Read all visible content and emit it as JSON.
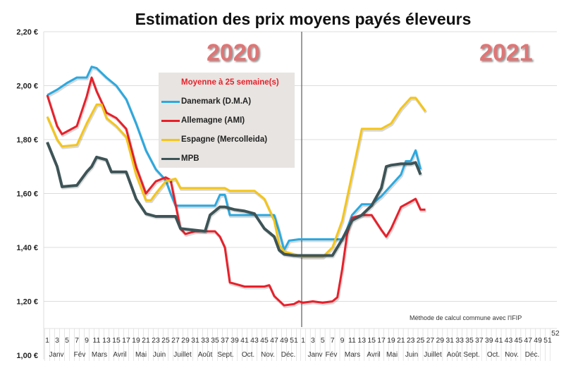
{
  "chart_data": {
    "type": "line",
    "title": "Estimation des prix moyens payés éleveurs",
    "year_labels": [
      "2020",
      "2021"
    ],
    "ylim": [
      1.0,
      2.2
    ],
    "y_ticks": [
      "1,00 €",
      "1,20 €",
      "1,40 €",
      "1,60 €",
      "1,80 €",
      "2,00 €",
      "2,20 €"
    ],
    "y_tick_values": [
      1.0,
      1.2,
      1.4,
      1.6,
      1.8,
      2.0,
      2.2
    ],
    "grid": "horizontal",
    "legend_title": "Moyenne à  25 semaine(s)",
    "legend_placement": "top-left inside",
    "week_ticks_2020": [
      "1",
      "3",
      "5",
      "7",
      "9",
      "11",
      "13",
      "15",
      "17",
      "19",
      "21",
      "23",
      "25",
      "27",
      "29",
      "31",
      "33",
      "35",
      "37",
      "39",
      "41",
      "43",
      "45",
      "47",
      "49",
      "51"
    ],
    "week_ticks_2021": [
      "1",
      "3",
      "5",
      "7",
      "9",
      "11",
      "13",
      "15",
      "17",
      "19",
      "21",
      "23",
      "25",
      "27",
      "29",
      "31",
      "33",
      "35",
      "37",
      "39",
      "41",
      "43",
      "45",
      "47",
      "49",
      "51",
      "52"
    ],
    "months_2020": [
      "Janv",
      "Fév",
      "Mars",
      "Avril",
      "Mai",
      "Juin",
      "Juillet",
      "Août",
      "Sept.",
      "Oct.",
      "Nov.",
      "Déc."
    ],
    "months_2021": [
      "Janv",
      "Fév",
      "Mars",
      "Avril",
      "Mai",
      "Juin",
      "Juillet",
      "Août",
      "Sept.",
      "Oct.",
      "Nov.",
      "Déc."
    ],
    "note": "Méthode de calcul commune avec l'IFIP",
    "series": [
      {
        "name": "Danemark (D.M.A)",
        "color": "#2aa9e0",
        "y2020": [
          [
            1,
            1.965
          ],
          [
            3,
            1.985
          ],
          [
            5,
            2.01
          ],
          [
            7,
            2.03
          ],
          [
            9,
            2.03
          ],
          [
            10,
            2.07
          ],
          [
            11,
            2.065
          ],
          [
            13,
            2.03
          ],
          [
            15,
            2.0
          ],
          [
            17,
            1.95
          ],
          [
            19,
            1.86
          ],
          [
            21,
            1.76
          ],
          [
            23,
            1.69
          ],
          [
            25,
            1.65
          ],
          [
            26,
            1.6
          ],
          [
            27,
            1.555
          ],
          [
            35,
            1.555
          ],
          [
            36,
            1.595
          ],
          [
            37,
            1.595
          ],
          [
            38,
            1.52
          ],
          [
            47,
            1.52
          ],
          [
            48,
            1.46
          ],
          [
            49,
            1.39
          ],
          [
            50,
            1.425
          ],
          [
            52,
            1.43
          ]
        ],
        "y2021": [
          [
            1,
            1.43
          ],
          [
            9,
            1.43
          ],
          [
            10,
            1.47
          ],
          [
            11,
            1.52
          ],
          [
            13,
            1.56
          ],
          [
            15,
            1.56
          ],
          [
            17,
            1.59
          ],
          [
            19,
            1.63
          ],
          [
            21,
            1.67
          ],
          [
            22,
            1.72
          ],
          [
            23,
            1.72
          ],
          [
            24,
            1.76
          ],
          [
            25,
            1.69
          ]
        ]
      },
      {
        "name": "Allemagne (AMI)",
        "color": "#e8202a",
        "y2020": [
          [
            1,
            1.965
          ],
          [
            3,
            1.85
          ],
          [
            4,
            1.82
          ],
          [
            5,
            1.83
          ],
          [
            7,
            1.85
          ],
          [
            9,
            1.96
          ],
          [
            10,
            2.03
          ],
          [
            11,
            1.98
          ],
          [
            13,
            1.9
          ],
          [
            15,
            1.88
          ],
          [
            17,
            1.84
          ],
          [
            19,
            1.7
          ],
          [
            21,
            1.6
          ],
          [
            23,
            1.645
          ],
          [
            25,
            1.66
          ],
          [
            26,
            1.65
          ],
          [
            27,
            1.56
          ],
          [
            28,
            1.47
          ],
          [
            29,
            1.45
          ],
          [
            31,
            1.46
          ],
          [
            35,
            1.46
          ],
          [
            36,
            1.44
          ],
          [
            37,
            1.4
          ],
          [
            38,
            1.27
          ],
          [
            39,
            1.265
          ],
          [
            41,
            1.255
          ],
          [
            45,
            1.255
          ],
          [
            46,
            1.26
          ],
          [
            47,
            1.22
          ],
          [
            49,
            1.185
          ],
          [
            51,
            1.19
          ],
          [
            52,
            1.2
          ]
        ],
        "y2021": [
          [
            1,
            1.195
          ],
          [
            3,
            1.2
          ],
          [
            5,
            1.195
          ],
          [
            7,
            1.2
          ],
          [
            8,
            1.215
          ],
          [
            9,
            1.32
          ],
          [
            10,
            1.45
          ],
          [
            11,
            1.51
          ],
          [
            13,
            1.52
          ],
          [
            15,
            1.52
          ],
          [
            17,
            1.465
          ],
          [
            18,
            1.44
          ],
          [
            19,
            1.47
          ],
          [
            21,
            1.55
          ],
          [
            23,
            1.57
          ],
          [
            24,
            1.58
          ],
          [
            25,
            1.54
          ],
          [
            26,
            1.54
          ]
        ]
      },
      {
        "name": "Espagne (Mercolleida)",
        "color": "#f5c518",
        "y2020": [
          [
            1,
            1.885
          ],
          [
            3,
            1.8
          ],
          [
            4,
            1.775
          ],
          [
            7,
            1.78
          ],
          [
            9,
            1.86
          ],
          [
            11,
            1.93
          ],
          [
            12,
            1.93
          ],
          [
            13,
            1.88
          ],
          [
            15,
            1.85
          ],
          [
            17,
            1.81
          ],
          [
            19,
            1.67
          ],
          [
            21,
            1.575
          ],
          [
            22,
            1.575
          ],
          [
            23,
            1.6
          ],
          [
            25,
            1.645
          ],
          [
            27,
            1.655
          ],
          [
            28,
            1.62
          ],
          [
            37,
            1.62
          ],
          [
            38,
            1.61
          ],
          [
            43,
            1.61
          ],
          [
            45,
            1.58
          ],
          [
            47,
            1.5
          ],
          [
            48,
            1.41
          ],
          [
            49,
            1.385
          ],
          [
            51,
            1.375
          ],
          [
            52,
            1.37
          ]
        ],
        "y2021": [
          [
            1,
            1.365
          ],
          [
            5,
            1.365
          ],
          [
            7,
            1.4
          ],
          [
            9,
            1.5
          ],
          [
            11,
            1.67
          ],
          [
            13,
            1.84
          ],
          [
            17,
            1.84
          ],
          [
            19,
            1.86
          ],
          [
            21,
            1.915
          ],
          [
            23,
            1.955
          ],
          [
            24,
            1.955
          ],
          [
            25,
            1.93
          ],
          [
            26,
            1.905
          ]
        ]
      },
      {
        "name": "MPB",
        "color": "#3e5457",
        "y2020": [
          [
            1,
            1.79
          ],
          [
            3,
            1.7
          ],
          [
            4,
            1.625
          ],
          [
            7,
            1.63
          ],
          [
            9,
            1.68
          ],
          [
            10,
            1.7
          ],
          [
            11,
            1.735
          ],
          [
            13,
            1.725
          ],
          [
            14,
            1.68
          ],
          [
            17,
            1.68
          ],
          [
            19,
            1.58
          ],
          [
            21,
            1.525
          ],
          [
            23,
            1.515
          ],
          [
            27,
            1.515
          ],
          [
            28,
            1.47
          ],
          [
            33,
            1.46
          ],
          [
            34,
            1.52
          ],
          [
            36,
            1.55
          ],
          [
            37,
            1.55
          ],
          [
            39,
            1.54
          ],
          [
            41,
            1.535
          ],
          [
            43,
            1.525
          ],
          [
            45,
            1.47
          ],
          [
            47,
            1.44
          ],
          [
            48,
            1.39
          ],
          [
            49,
            1.375
          ],
          [
            51,
            1.37
          ],
          [
            52,
            1.37
          ]
        ],
        "y2021": [
          [
            1,
            1.37
          ],
          [
            7,
            1.37
          ],
          [
            9,
            1.43
          ],
          [
            11,
            1.5
          ],
          [
            13,
            1.52
          ],
          [
            15,
            1.555
          ],
          [
            17,
            1.62
          ],
          [
            18,
            1.7
          ],
          [
            19,
            1.705
          ],
          [
            21,
            1.71
          ],
          [
            23,
            1.71
          ],
          [
            24,
            1.715
          ],
          [
            25,
            1.67
          ]
        ]
      }
    ]
  }
}
